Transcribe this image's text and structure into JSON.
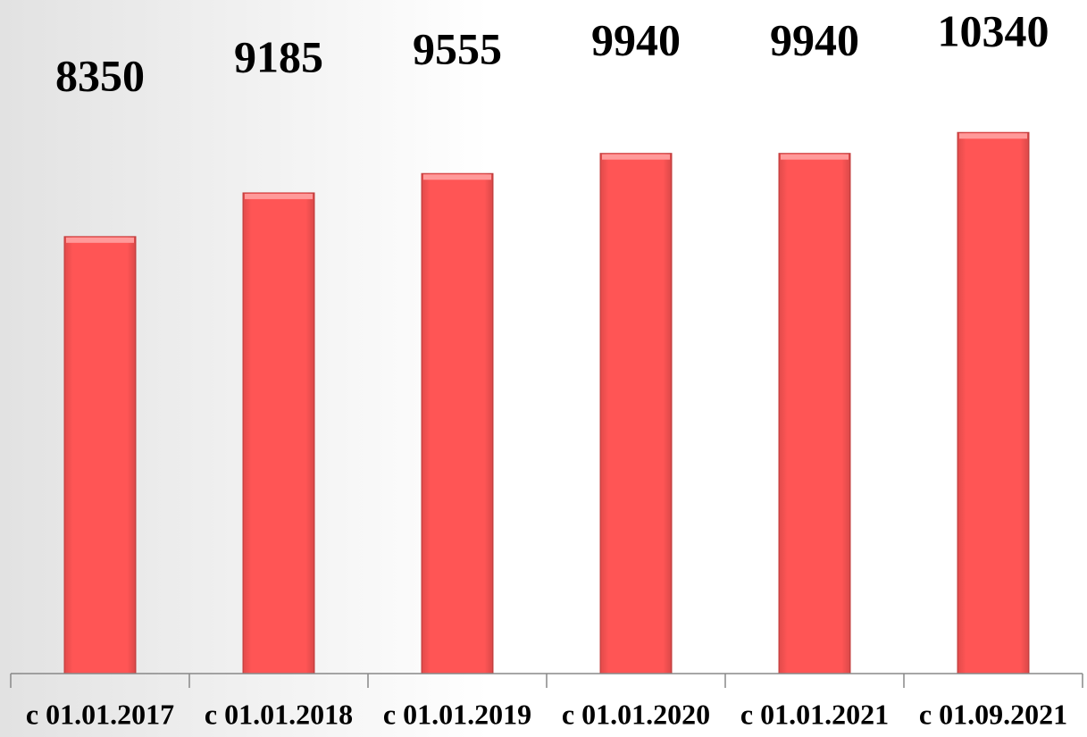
{
  "chart_data": {
    "type": "bar",
    "categories": [
      "c 01.01.2017",
      "c 01.01.2018",
      "c 01.01.2019",
      "c 01.01.2020",
      "c 01.01.2021",
      "c 01.09.2021"
    ],
    "values": [
      8350,
      9185,
      9555,
      9940,
      9940,
      10340
    ],
    "color": "#ff5555",
    "ylim": [
      0,
      12000
    ]
  }
}
